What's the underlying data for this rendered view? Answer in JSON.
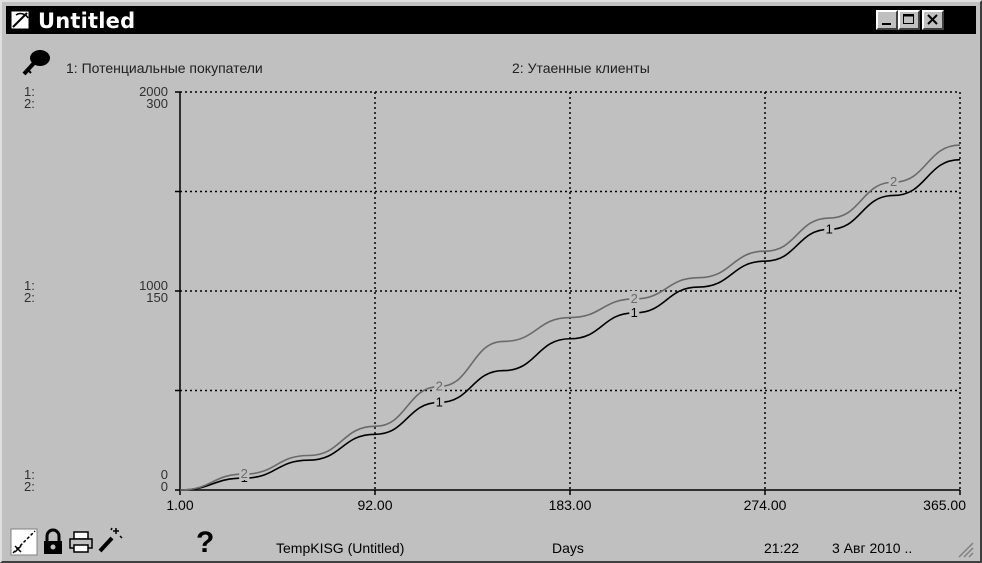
{
  "window": {
    "title": "Untitled"
  },
  "legend": [
    {
      "label": "1: Потенциальные покупатели"
    },
    {
      "label": "2: Утаенные клиенты"
    }
  ],
  "axis_labels": {
    "top_1": "1:",
    "top_2": "2:",
    "top_val_1": "2000",
    "top_val_2": "300",
    "mid_1": "1:",
    "mid_2": "2:",
    "mid_val_1": "1000",
    "mid_val_2": "150",
    "bot_1": "1:",
    "bot_2": "2:",
    "bot_val_1": "0",
    "bot_val_2": "0"
  },
  "status": {
    "model": "TempKISG (Untitled)",
    "unit": "Days",
    "time": "21:22",
    "date": "3 Авг 2010 ..",
    "help": "?"
  },
  "colors": {
    "series1": "#000000",
    "series2": "#6a6a6a",
    "background": "#c0c0c0"
  },
  "icons": [
    "app-icon",
    "key-icon",
    "axis-toggle-icon",
    "lock-icon",
    "print-icon",
    "wand-icon",
    "help-icon",
    "minimize-icon",
    "maximize-icon",
    "close-icon",
    "resize-grip-icon"
  ],
  "chart_data": {
    "type": "line",
    "x": [
      1,
      31,
      61,
      92,
      122,
      152,
      183,
      213,
      243,
      274,
      304,
      334,
      365
    ],
    "xlim": [
      1,
      365
    ],
    "x_ticks": [
      "1.00",
      "92.00",
      "183.00",
      "274.00",
      "365.00"
    ],
    "xlabel": "Days",
    "grid": true,
    "series": [
      {
        "name": "Потенциальные покупатели",
        "marker": "1",
        "ylim": [
          0,
          2000
        ],
        "values": [
          0,
          60,
          150,
          280,
          440,
          600,
          760,
          890,
          1020,
          1150,
          1310,
          1480,
          1660
        ]
      },
      {
        "name": "Утаенные клиенты",
        "marker": "2",
        "ylim": [
          0,
          300
        ],
        "values": [
          0,
          12,
          26,
          48,
          78,
          112,
          130,
          144,
          160,
          180,
          205,
          232,
          260
        ]
      }
    ]
  }
}
